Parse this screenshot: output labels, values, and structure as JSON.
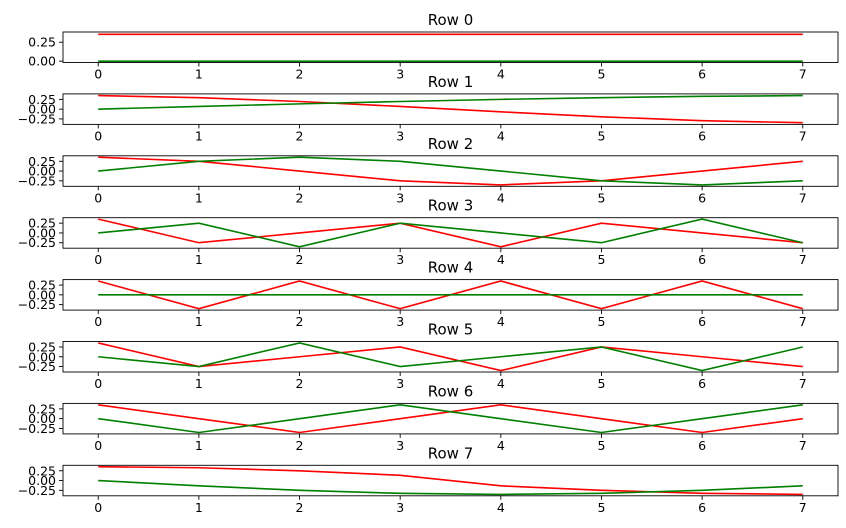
{
  "chart_data": [
    {
      "type": "line",
      "title": "Row 0",
      "x": [
        0,
        1,
        2,
        3,
        4,
        5,
        6,
        7
      ],
      "xticks": [
        "0",
        "1",
        "2",
        "3",
        "4",
        "5",
        "6",
        "7"
      ],
      "yticks": [
        "0.00",
        "0.25"
      ],
      "ylim": [
        -0.018,
        0.385
      ],
      "series": [
        {
          "color": "#ff0000",
          "values": [
            0.354,
            0.354,
            0.354,
            0.354,
            0.354,
            0.354,
            0.354,
            0.354
          ]
        },
        {
          "color": "#008000",
          "values": [
            0.0,
            0.0,
            0.0,
            0.0,
            0.0,
            0.0,
            0.0,
            0.0
          ]
        }
      ]
    },
    {
      "type": "line",
      "title": "Row 1",
      "x": [
        0,
        1,
        2,
        3,
        4,
        5,
        6,
        7
      ],
      "xticks": [
        "0",
        "1",
        "2",
        "3",
        "4",
        "5",
        "6",
        "7"
      ],
      "yticks": [
        "−0.25",
        "0.00",
        "0.25"
      ],
      "ylim": [
        -0.39,
        0.39
      ],
      "series": [
        {
          "color": "#ff0000",
          "values": [
            0.347,
            0.294,
            0.196,
            0.069,
            -0.069,
            -0.196,
            -0.294,
            -0.347
          ]
        },
        {
          "color": "#008000",
          "values": [
            0.0,
            0.069,
            0.135,
            0.196,
            0.25,
            0.294,
            0.327,
            0.347
          ]
        }
      ]
    },
    {
      "type": "line",
      "title": "Row 2",
      "x": [
        0,
        1,
        2,
        3,
        4,
        5,
        6,
        7
      ],
      "xticks": [
        "0",
        "1",
        "2",
        "3",
        "4",
        "5",
        "6",
        "7"
      ],
      "yticks": [
        "−0.25",
        "0.00",
        "0.25"
      ],
      "ylim": [
        -0.39,
        0.39
      ],
      "series": [
        {
          "color": "#ff0000",
          "values": [
            0.354,
            0.25,
            0.0,
            -0.25,
            -0.354,
            -0.25,
            0.0,
            0.25
          ]
        },
        {
          "color": "#008000",
          "values": [
            0.0,
            0.25,
            0.354,
            0.25,
            0.0,
            -0.25,
            -0.354,
            -0.25
          ]
        }
      ]
    },
    {
      "type": "line",
      "title": "Row 3",
      "x": [
        0,
        1,
        2,
        3,
        4,
        5,
        6,
        7
      ],
      "xticks": [
        "0",
        "1",
        "2",
        "3",
        "4",
        "5",
        "6",
        "7"
      ],
      "yticks": [
        "−0.25",
        "0.00",
        "0.25"
      ],
      "ylim": [
        -0.39,
        0.39
      ],
      "series": [
        {
          "color": "#ff0000",
          "values": [
            0.354,
            -0.25,
            0.0,
            0.25,
            -0.354,
            0.25,
            0.0,
            -0.25
          ]
        },
        {
          "color": "#008000",
          "values": [
            0.0,
            0.25,
            -0.354,
            0.25,
            0.0,
            -0.25,
            0.354,
            -0.25
          ]
        }
      ]
    },
    {
      "type": "line",
      "title": "Row 4",
      "x": [
        0,
        1,
        2,
        3,
        4,
        5,
        6,
        7
      ],
      "xticks": [
        "0",
        "1",
        "2",
        "3",
        "4",
        "5",
        "6",
        "7"
      ],
      "yticks": [
        "−0.25",
        "0.00",
        "0.25"
      ],
      "ylim": [
        -0.39,
        0.39
      ],
      "series": [
        {
          "color": "#ff0000",
          "values": [
            0.354,
            -0.354,
            0.354,
            -0.354,
            0.354,
            -0.354,
            0.354,
            -0.354
          ]
        },
        {
          "color": "#008000",
          "values": [
            0.0,
            0.0,
            0.0,
            0.0,
            0.0,
            0.0,
            0.0,
            0.0
          ]
        }
      ]
    },
    {
      "type": "line",
      "title": "Row 5",
      "x": [
        0,
        1,
        2,
        3,
        4,
        5,
        6,
        7
      ],
      "xticks": [
        "0",
        "1",
        "2",
        "3",
        "4",
        "5",
        "6",
        "7"
      ],
      "yticks": [
        "−0.25",
        "0.00",
        "0.25"
      ],
      "ylim": [
        -0.39,
        0.39
      ],
      "series": [
        {
          "color": "#ff0000",
          "values": [
            0.354,
            -0.25,
            0.0,
            0.25,
            -0.354,
            0.25,
            0.0,
            -0.25
          ]
        },
        {
          "color": "#008000",
          "values": [
            0.0,
            -0.25,
            0.354,
            -0.25,
            0.0,
            0.25,
            -0.354,
            0.25
          ]
        }
      ]
    },
    {
      "type": "line",
      "title": "Row 6",
      "x": [
        0,
        1,
        2,
        3,
        4,
        5,
        6,
        7
      ],
      "xticks": [
        "0",
        "1",
        "2",
        "3",
        "4",
        "5",
        "6",
        "7"
      ],
      "yticks": [
        "−0.25",
        "0.00",
        "0.25"
      ],
      "ylim": [
        -0.39,
        0.39
      ],
      "series": [
        {
          "color": "#ff0000",
          "values": [
            0.354,
            0.0,
            -0.354,
            0.0,
            0.354,
            0.0,
            -0.354,
            0.0
          ]
        },
        {
          "color": "#008000",
          "values": [
            0.0,
            -0.354,
            0.0,
            0.354,
            0.0,
            -0.354,
            0.0,
            0.354
          ]
        }
      ]
    },
    {
      "type": "line",
      "title": "Row 7",
      "x": [
        0,
        1,
        2,
        3,
        4,
        5,
        6,
        7
      ],
      "xticks": [
        "0",
        "1",
        "2",
        "3",
        "4",
        "5",
        "6",
        "7"
      ],
      "yticks": [
        "−0.25",
        "0.00",
        "0.25"
      ],
      "ylim": [
        -0.39,
        0.39
      ],
      "series": [
        {
          "color": "#ff0000",
          "values": [
            0.354,
            0.327,
            0.25,
            0.135,
            -0.135,
            -0.25,
            -0.327,
            -0.354
          ]
        },
        {
          "color": "#008000",
          "values": [
            0.0,
            -0.135,
            -0.25,
            -0.327,
            -0.354,
            -0.327,
            -0.25,
            -0.135
          ]
        }
      ]
    }
  ]
}
